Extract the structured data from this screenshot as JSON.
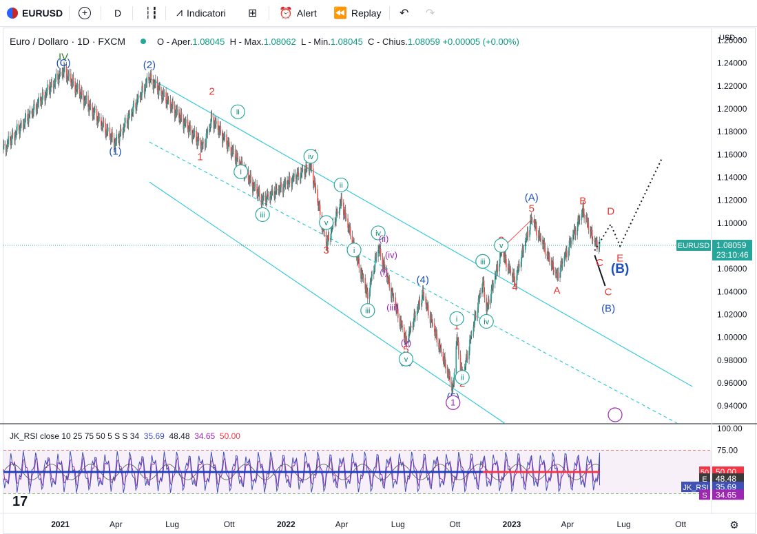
{
  "toolbar": {
    "symbol": "EURUSD",
    "interval": "D",
    "indicators_label": "Indicatori",
    "alert_label": "Alert",
    "replay_label": "Replay"
  },
  "legend": {
    "title": "Euro / Dollaro · 1D · FXCM",
    "o_label": "O - Aper.",
    "o_val": "1.08045",
    "h_label": "H - Max.",
    "h_val": "1.08062",
    "l_label": "L - Min.",
    "l_val": "1.08045",
    "c_label": "C - Chius.",
    "c_val": "1.08059",
    "change": "+0.00005 (+0.00%)"
  },
  "rsi_legend": {
    "text": "JK_RSI close 10 25 75 50 5 S S 34",
    "v1": "35.69",
    "v2": "48.48",
    "v3": "34.65",
    "v4": "50.00"
  },
  "price_axis": {
    "currency": "USD",
    "ticks": [
      "1.26000",
      "1.24000",
      "1.22000",
      "1.20000",
      "1.18000",
      "1.16000",
      "1.14000",
      "1.12000",
      "1.10000",
      "1.08000",
      "1.06000",
      "1.04000",
      "1.02000",
      "1.00000",
      "0.98000",
      "0.96000",
      "0.94000"
    ],
    "badge_symbol": "EURUSD",
    "badge_price": "1.08059",
    "badge_timer": "23:10:46"
  },
  "rsi_axis": {
    "ticks": [
      "100.00",
      "75.00"
    ],
    "badges": [
      {
        "tag": "50",
        "value": "50.00",
        "color": "#f23645"
      },
      {
        "tag": "E",
        "value": "48.48",
        "color": "#3a3a3a"
      },
      {
        "tag": "JK_RSI",
        "value": "35.69",
        "color": "#3f51b5"
      },
      {
        "tag": "S",
        "value": "34.65",
        "color": "#9c27b0"
      }
    ]
  },
  "time_axis": {
    "labels": [
      "2021",
      "Apr",
      "Lug",
      "Ott",
      "2022",
      "Apr",
      "Lug",
      "Ott",
      "2023",
      "Apr",
      "Lug",
      "Ott"
    ]
  },
  "chart_data": {
    "type": "candlestick",
    "symbol": "EURUSD",
    "interval": "1D",
    "ylim": [
      0.925,
      1.27
    ],
    "ticks": [
      1.26,
      1.24,
      1.22,
      1.2,
      1.18,
      1.16,
      1.14,
      1.12,
      1.1,
      1.08,
      1.06,
      1.04,
      1.02,
      1.0,
      0.98,
      0.96,
      0.94
    ],
    "last_price": 1.08059,
    "swing_points": [
      {
        "date": "2020-10-01",
        "price": 1.165
      },
      {
        "date": "2021-01-06",
        "price": 1.234
      },
      {
        "date": "2021-03-31",
        "price": 1.17
      },
      {
        "date": "2021-05-25",
        "price": 1.227
      },
      {
        "date": "2021-08-20",
        "price": 1.166
      },
      {
        "date": "2021-09-03",
        "price": 1.191
      },
      {
        "date": "2021-11-24",
        "price": 1.119
      },
      {
        "date": "2022-02-10",
        "price": 1.149
      },
      {
        "date": "2022-03-07",
        "price": 1.08
      },
      {
        "date": "2022-03-31",
        "price": 1.118
      },
      {
        "date": "2022-05-13",
        "price": 1.035
      },
      {
        "date": "2022-05-30",
        "price": 1.078
      },
      {
        "date": "2022-07-14",
        "price": 0.995
      },
      {
        "date": "2022-08-10",
        "price": 1.037
      },
      {
        "date": "2022-09-28",
        "price": 0.953
      },
      {
        "date": "2022-10-04",
        "price": 0.999
      },
      {
        "date": "2022-10-13",
        "price": 0.963
      },
      {
        "date": "2022-11-15",
        "price": 1.048
      },
      {
        "date": "2022-11-21",
        "price": 1.022
      },
      {
        "date": "2022-12-15",
        "price": 1.074
      },
      {
        "date": "2023-01-06",
        "price": 1.048
      },
      {
        "date": "2023-02-02",
        "price": 1.103
      },
      {
        "date": "2023-03-15",
        "price": 1.052
      },
      {
        "date": "2023-04-26",
        "price": 1.11
      },
      {
        "date": "2023-05-15",
        "price": 1.081
      }
    ],
    "rsi": {
      "ylim": [
        0,
        100
      ],
      "levels": [
        75,
        50,
        25
      ],
      "values": {
        "jk_rsi": 35.69,
        "e": 48.48,
        "s": 34.65,
        "mid": 50.0
      }
    }
  },
  "annotations": {
    "black_labels": [],
    "wave": [
      {
        "t": "IV",
        "c": "#2e7d32",
        "d": "2021-01-06",
        "p": 1.2425
      },
      {
        "t": "(C)",
        "c": "#1e4fbf",
        "d": "2021-01-06",
        "p": 1.2375
      },
      {
        "t": "(2)",
        "c": "#1e4fbf",
        "d": "2021-05-25",
        "p": 1.2355
      },
      {
        "t": "(1)",
        "c": "#1e4fbf",
        "d": "2021-03-31",
        "p": 1.16
      },
      {
        "t": "2",
        "c": "#e53935",
        "d": "2021-09-03",
        "p": 1.2125
      },
      {
        "t": "1",
        "c": "#e53935",
        "d": "2021-08-15",
        "p": 1.155
      },
      {
        "t": "3",
        "c": "#e53935",
        "d": "2022-03-07",
        "p": 1.0735
      },
      {
        "t": "4",
        "c": "#e53935",
        "d": "2022-02-16",
        "p": 1.1585
      },
      {
        "t": "5",
        "c": "#e53935",
        "d": "2022-07-14",
        "p": 0.9865
      },
      {
        "t": "(3)",
        "c": "#1e4fbf",
        "d": "2022-07-14",
        "p": 0.9765
      },
      {
        "t": "(4)",
        "c": "#1e4fbf",
        "d": "2022-08-10",
        "p": 1.0475
      },
      {
        "t": "(5)",
        "c": "#1e4fbf",
        "d": "2022-09-28",
        "p": 0.945
      },
      {
        "t": "1",
        "c": "#e53935",
        "d": "2022-10-04",
        "p": 1.007
      },
      {
        "t": "2",
        "c": "#e53935",
        "d": "2022-10-13",
        "p": 0.957
      },
      {
        "t": "3",
        "c": "#e53935",
        "d": "2022-12-15",
        "p": 1.082
      },
      {
        "t": "4",
        "c": "#e53935",
        "d": "2023-01-06",
        "p": 1.041
      },
      {
        "t": "5",
        "c": "#e53935",
        "d": "2023-02-02",
        "p": 1.11
      },
      {
        "t": "(A)",
        "c": "#1e4fbf",
        "d": "2023-02-02",
        "p": 1.1195
      },
      {
        "t": "A",
        "c": "#e53935",
        "d": "2023-03-15",
        "p": 1.038
      },
      {
        "t": "B",
        "c": "#e53935",
        "d": "2023-04-26",
        "p": 1.1165
      },
      {
        "t": "C",
        "c": "#e53935",
        "d": "2023-05-23",
        "p": 1.0625
      },
      {
        "t": "D",
        "c": "#e53935",
        "d": "2023-06-10",
        "p": 1.1075
      },
      {
        "t": "E",
        "c": "#e53935",
        "d": "2023-06-25",
        "p": 1.0665
      },
      {
        "t": "(B)",
        "c": "#1e4fbf",
        "d": "2023-06-25",
        "p": 1.0565
      },
      {
        "t": "C",
        "c": "#e53935",
        "d": "2023-06-06",
        "p": 1.037
      },
      {
        "t": "(B)",
        "c": "#1e4fbf",
        "d": "2023-06-06",
        "p": 1.0225
      }
    ],
    "circled": [
      {
        "t": "ii",
        "d": "2021-10-15",
        "p": 1.1975
      },
      {
        "t": "i",
        "d": "2021-10-20",
        "p": 1.145
      },
      {
        "t": "iii",
        "d": "2021-11-24",
        "p": 1.1075
      },
      {
        "t": "iv",
        "d": "2022-02-10",
        "p": 1.1585
      },
      {
        "t": "v",
        "d": "2022-03-07",
        "p": 1.1005
      },
      {
        "t": "ii",
        "d": "2022-03-31",
        "p": 1.1335
      },
      {
        "t": "i",
        "d": "2022-04-21",
        "p": 1.0765
      },
      {
        "t": "iv",
        "d": "2022-05-30",
        "p": 1.0915
      },
      {
        "t": "iii",
        "d": "2022-05-13",
        "p": 1.0235
      },
      {
        "t": "v",
        "d": "2022-07-14",
        "p": 0.981
      },
      {
        "t": "i",
        "d": "2022-10-04",
        "p": 1.0165
      },
      {
        "t": "ii",
        "d": "2022-10-13",
        "p": 0.965
      },
      {
        "t": "iii",
        "d": "2022-11-15",
        "p": 1.0665
      },
      {
        "t": "iv",
        "d": "2022-11-21",
        "p": 1.014
      },
      {
        "t": "v",
        "d": "2022-12-15",
        "p": 1.0805
      }
    ],
    "purple": [
      {
        "t": "(ii)",
        "d": "2022-06-08",
        "p": 1.0835
      },
      {
        "t": "(iv)",
        "d": "2022-06-20",
        "p": 1.0695
      },
      {
        "t": "(i)",
        "d": "2022-06-08",
        "p": 1.0545
      },
      {
        "t": "(iii)",
        "d": "2022-06-22",
        "p": 1.0235
      },
      {
        "t": "(v)",
        "d": "2022-07-14",
        "p": 0.9925
      }
    ]
  }
}
